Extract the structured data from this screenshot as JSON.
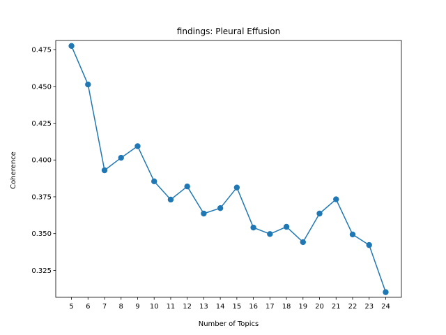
{
  "chart_data": {
    "type": "line",
    "title": "findings: Pleural Effusion",
    "xlabel": "Number of Topics",
    "ylabel": "Coherence",
    "x": [
      5,
      6,
      7,
      8,
      9,
      10,
      11,
      12,
      13,
      14,
      15,
      16,
      17,
      18,
      19,
      20,
      21,
      22,
      23,
      24
    ],
    "series": [
      {
        "values": [
          0.4775,
          0.4513,
          0.393,
          0.4015,
          0.4094,
          0.3855,
          0.3731,
          0.382,
          0.3636,
          0.3673,
          0.3813,
          0.3541,
          0.3497,
          0.3546,
          0.3442,
          0.3636,
          0.3733,
          0.3494,
          0.3422,
          0.3102
        ],
        "color": "#1f77b4"
      }
    ],
    "ylim": [
      0.3067,
      0.4812
    ],
    "yticks": [
      "0.325",
      "0.350",
      "0.375",
      "0.400",
      "0.425",
      "0.450",
      "0.475"
    ],
    "xticks": [
      "5",
      "6",
      "7",
      "8",
      "9",
      "10",
      "11",
      "12",
      "13",
      "14",
      "15",
      "16",
      "17",
      "18",
      "19",
      "20",
      "21",
      "22",
      "23",
      "24"
    ],
    "grid": false,
    "legend": "none"
  }
}
